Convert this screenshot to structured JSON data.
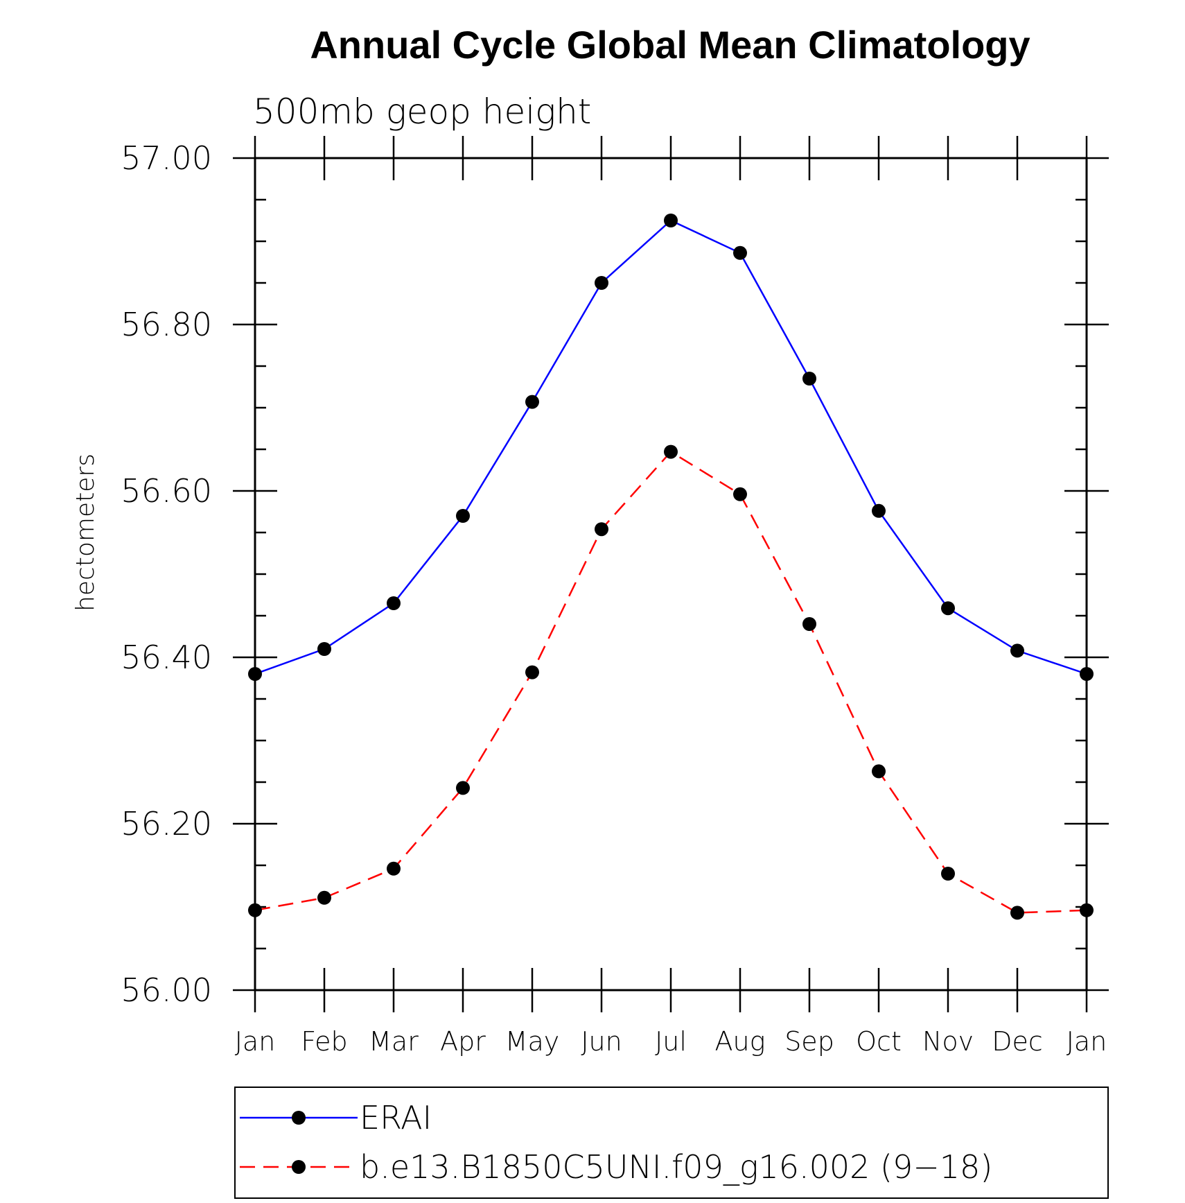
{
  "chart_data": {
    "type": "line",
    "title": "Annual Cycle Global Mean Climatology",
    "subtitle": "500mb geop height",
    "xlabel": "",
    "ylabel": "hectometers",
    "categories": [
      "Jan",
      "Feb",
      "Mar",
      "Apr",
      "May",
      "Jun",
      "Jul",
      "Aug",
      "Sep",
      "Oct",
      "Nov",
      "Dec",
      "Jan"
    ],
    "ylim": [
      56.0,
      57.0
    ],
    "yticks": [
      "56.00",
      "56.20",
      "56.40",
      "56.60",
      "56.80",
      "57.00"
    ],
    "grid": false,
    "legend_position": "bottom",
    "series": [
      {
        "name": "ERAI",
        "color": "#0000ff",
        "line_style": "solid",
        "marker": "filled-circle",
        "values": [
          56.38,
          56.41,
          56.465,
          56.57,
          56.707,
          56.85,
          56.925,
          56.886,
          56.735,
          56.576,
          56.459,
          56.408,
          56.38
        ]
      },
      {
        "name": "b.e13.B1850C5UNI.f09_g16.002 (9−18)",
        "color": "#ff0000",
        "line_style": "dashed",
        "marker": "filled-circle",
        "values": [
          56.096,
          56.111,
          56.146,
          56.243,
          56.382,
          56.554,
          56.647,
          56.596,
          56.44,
          56.263,
          56.14,
          56.093,
          56.096
        ]
      }
    ]
  }
}
